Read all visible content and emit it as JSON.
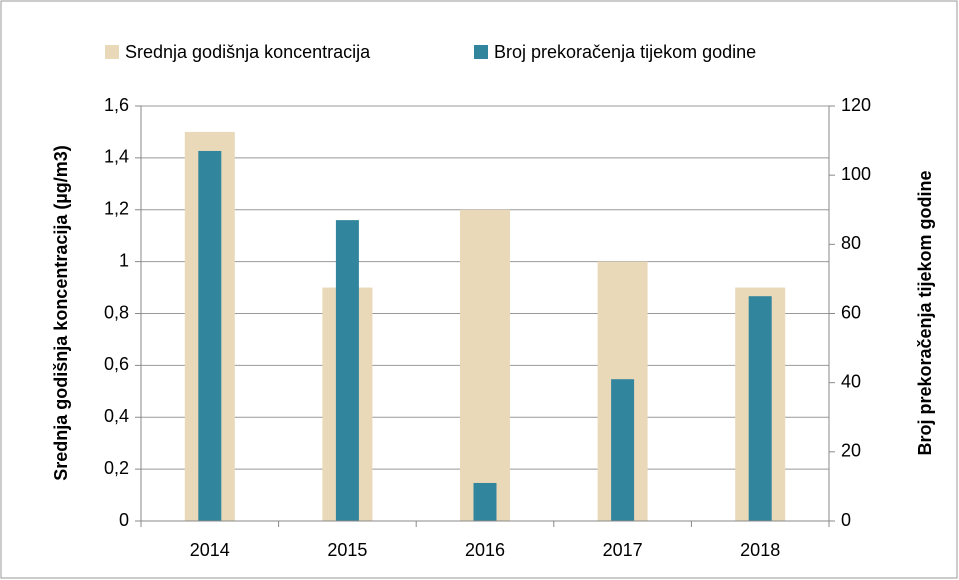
{
  "chart_data": {
    "type": "bar",
    "categories": [
      "2014",
      "2015",
      "2016",
      "2017",
      "2018"
    ],
    "series": [
      {
        "name": "Srednja godišnja koncentracija",
        "color": "#ead9b8",
        "values": [
          1.5,
          0.9,
          1.2,
          1.0,
          0.9
        ]
      },
      {
        "name": "Broj prekoračenja tijekom godine",
        "color": "#31859c",
        "values": [
          107,
          87,
          11,
          41,
          65
        ],
        "axis": "y2"
      }
    ],
    "ylabel": "Srednja godišnja koncentracija (µg/m3)",
    "y2label": "Broj prekoračenja tijekom godine",
    "ylim": [
      0,
      1.6
    ],
    "yticks": [
      0,
      {
        "value": 0.2,
        "label": "0,2"
      },
      {
        "value": 0.4,
        "label": "0,4"
      },
      {
        "value": 0.6,
        "label": "0,6"
      },
      {
        "value": 0.8,
        "label": "0,8"
      },
      1,
      {
        "value": 1.2,
        "label": "1,2"
      },
      {
        "value": 1.4,
        "label": "1,4"
      },
      {
        "value": 1.6,
        "label": "1,6"
      }
    ],
    "y2lim": [
      0,
      120
    ],
    "y2ticks": [
      0,
      20,
      40,
      60,
      80,
      100,
      120
    ],
    "grid": true,
    "legend": "top"
  }
}
